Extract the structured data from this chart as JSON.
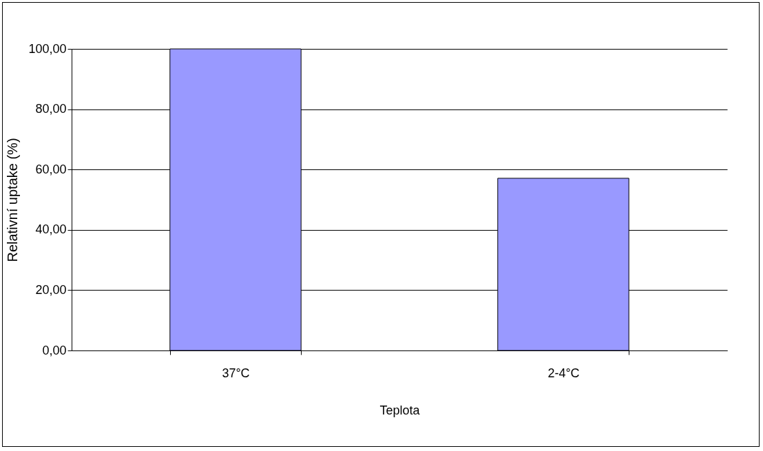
{
  "chart_data": {
    "type": "bar",
    "xlabel": "Teplota",
    "ylabel": "Relativní uptake (%)",
    "categories": [
      "37°C",
      "2-4°C"
    ],
    "series": [
      {
        "color": "#9999ff",
        "values": [
          100,
          57.1
        ]
      }
    ],
    "ylim": [
      0,
      100
    ],
    "yticks": [
      {
        "value": 0,
        "label": "0,00"
      },
      {
        "value": 20,
        "label": "20,00"
      },
      {
        "value": 40,
        "label": "40,00"
      },
      {
        "value": 60,
        "label": "60,00"
      },
      {
        "value": 80,
        "label": "80,00"
      },
      {
        "value": 100,
        "label": "100,00"
      }
    ],
    "grid": "y"
  }
}
